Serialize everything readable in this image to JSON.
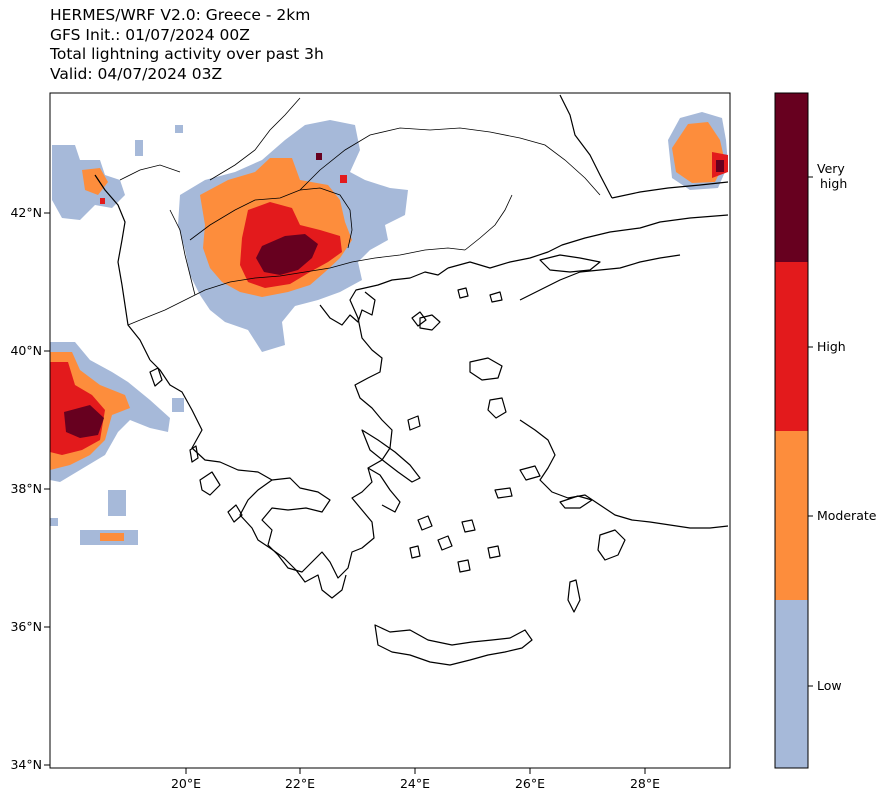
{
  "title": {
    "line1": "HERMES/WRF V2.0: Greece - 2km",
    "line2": "GFS Init.: 01/07/2024 00Z",
    "line3": "Total lightning activity over past 3h",
    "line4": "Valid: 04/07/2024 03Z"
  },
  "axes": {
    "lat_labels": [
      "42°N",
      "40°N",
      "38°N",
      "36°N",
      "34°N"
    ],
    "lon_labels": [
      "20°E",
      "22°E",
      "24°E",
      "26°E",
      "28°E"
    ]
  },
  "colorbar": {
    "labels": [
      "Very\nhigh",
      "High",
      "Moderate",
      "Low"
    ],
    "colors": {
      "low": "#a6b9d9",
      "moderate": "#fd8d3c",
      "high": "#e31a1c",
      "very_high": "#67001f"
    }
  }
}
